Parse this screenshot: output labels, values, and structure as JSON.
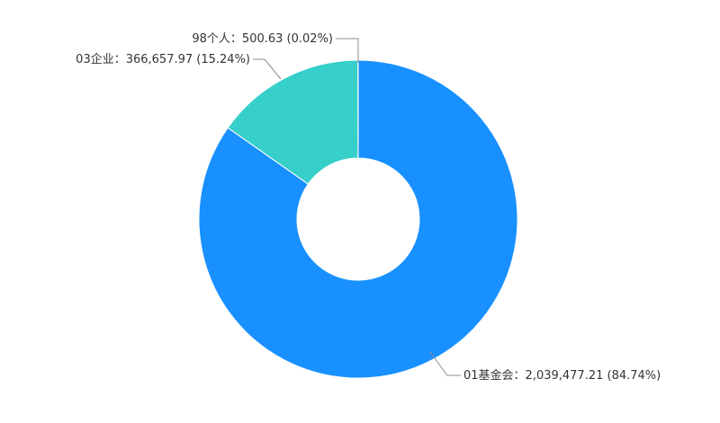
{
  "chart_data": {
    "type": "pie",
    "variant": "donut",
    "slices": [
      {
        "label": "01基金会",
        "value": 2039477.21,
        "value_text": "2,039,477.21",
        "percent": "84.74%",
        "color": "#1890ff"
      },
      {
        "label": "03企业",
        "value": 366657.97,
        "value_text": "366,657.97",
        "percent": "15.24%",
        "color": "#36cfc9"
      },
      {
        "label": "98个人",
        "value": 500.63,
        "value_text": "500.63",
        "percent": "0.02%",
        "color": "#f5c000"
      }
    ]
  },
  "labels": {
    "s0": "01基金会：2,039,477.21 (84.74%)",
    "s1": "03企业：366,657.97 (15.24%)",
    "s2": "98个人：500.63 (0.02%)"
  }
}
